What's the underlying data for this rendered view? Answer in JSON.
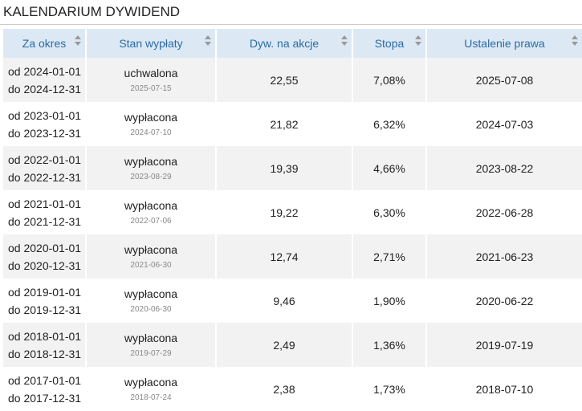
{
  "header": {
    "title": "KALENDARIUM DYWIDEND"
  },
  "table": {
    "columns": [
      "Za okres",
      "Stan wypłaty",
      "Dyw. na akcje",
      "Stopa",
      "Ustalenie prawa"
    ],
    "rows": [
      [
        "od 2024-01-01",
        "do 2024-12-31",
        "uchwalona",
        "2025-07-15",
        "22,55",
        "7,08%",
        "2025-07-08"
      ],
      [
        "od 2023-01-01",
        "do 2023-12-31",
        "wypłacona",
        "2024-07-10",
        "21,82",
        "6,32%",
        "2024-07-03"
      ],
      [
        "od 2022-01-01",
        "do 2022-12-31",
        "wypłacona",
        "2023-08-29",
        "19,39",
        "4,66%",
        "2023-08-22"
      ],
      [
        "od 2021-01-01",
        "do 2021-12-31",
        "wypłacona",
        "2022-07-06",
        "19,22",
        "6,30%",
        "2022-06-28"
      ],
      [
        "od 2020-01-01",
        "do 2020-12-31",
        "wypłacona",
        "2021-06-30",
        "12,74",
        "2,71%",
        "2021-06-23"
      ],
      [
        "od 2019-01-01",
        "do 2019-12-31",
        "wypłacona",
        "2020-06-30",
        "9,46",
        "1,90%",
        "2020-06-22"
      ],
      [
        "od 2018-01-01",
        "do 2018-12-31",
        "wypłacona",
        "2019-07-29",
        "2,49",
        "1,36%",
        "2019-07-19"
      ],
      [
        "od 2017-01-01",
        "do 2017-12-31",
        "wypłacona",
        "2018-07-24",
        "2,38",
        "1,73%",
        "2018-07-10"
      ]
    ]
  }
}
